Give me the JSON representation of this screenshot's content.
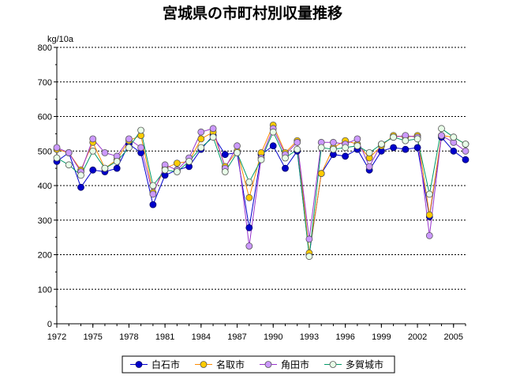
{
  "chart_data": {
    "type": "line",
    "title": "宮城県の市町村別収量推移",
    "unit_label": "kg/10a",
    "xlabel": "",
    "ylabel": "kg/10a",
    "x": [
      1972,
      1973,
      1974,
      1975,
      1976,
      1977,
      1978,
      1979,
      1980,
      1981,
      1982,
      1983,
      1984,
      1985,
      1986,
      1987,
      1988,
      1989,
      1990,
      1991,
      1992,
      1993,
      1994,
      1995,
      1996,
      1997,
      1998,
      1999,
      2000,
      2001,
      2002,
      2003,
      2004,
      2005,
      2006
    ],
    "x_tick_labels": [
      "1972",
      "1975",
      "1978",
      "1981",
      "1984",
      "1987",
      "1990",
      "1993",
      "1996",
      "1999",
      "2002",
      "2005"
    ],
    "x_tick_values": [
      1972,
      1975,
      1978,
      1981,
      1984,
      1987,
      1990,
      1993,
      1996,
      1999,
      2002,
      2005
    ],
    "xlim": [
      1972,
      2006
    ],
    "ylim": [
      0,
      800
    ],
    "y_ticks": [
      0,
      100,
      200,
      300,
      400,
      500,
      600,
      700,
      800
    ],
    "grid": true,
    "legend_position": "bottom",
    "series": [
      {
        "name": "白石市",
        "color": "#0000cc",
        "fill": "#0000cc",
        "values": [
          470,
          495,
          395,
          445,
          440,
          450,
          520,
          495,
          345,
          430,
          445,
          455,
          505,
          545,
          490,
          495,
          278,
          490,
          515,
          450,
          500,
          200,
          435,
          490,
          485,
          505,
          445,
          500,
          510,
          505,
          510,
          310,
          540,
          500,
          475
        ]
      },
      {
        "name": "名取市",
        "color": "#ff8c00",
        "fill": "#ffcc00",
        "values": [
          505,
          495,
          445,
          525,
          450,
          475,
          530,
          545,
          380,
          450,
          465,
          470,
          535,
          555,
          455,
          500,
          365,
          495,
          575,
          495,
          530,
          205,
          435,
          510,
          530,
          520,
          480,
          515,
          545,
          540,
          545,
          315,
          545,
          540,
          520
        ]
      },
      {
        "name": "角田市",
        "color": "#9933cc",
        "fill": "#cc99ff",
        "values": [
          510,
          495,
          440,
          535,
          495,
          485,
          535,
          510,
          375,
          460,
          445,
          480,
          555,
          565,
          450,
          515,
          225,
          480,
          565,
          490,
          525,
          245,
          525,
          525,
          520,
          535,
          455,
          520,
          540,
          545,
          540,
          255,
          545,
          525,
          500
        ]
      },
      {
        "name": "多賀城市",
        "color": "#009966",
        "fill": "#e8ffe8",
        "values": [
          480,
          460,
          430,
          500,
          450,
          470,
          510,
          560,
          400,
          445,
          440,
          470,
          510,
          540,
          440,
          495,
          410,
          475,
          555,
          480,
          505,
          195,
          510,
          505,
          510,
          515,
          495,
          520,
          540,
          530,
          535,
          375,
          565,
          540,
          520
        ]
      }
    ]
  }
}
